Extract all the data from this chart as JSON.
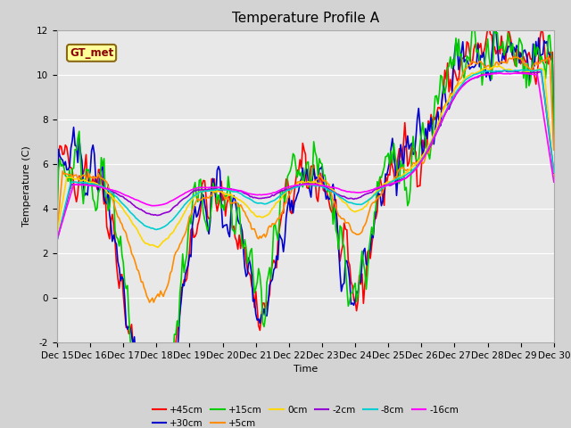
{
  "title": "Temperature Profile A",
  "xlabel": "Time",
  "ylabel": "Temperature (C)",
  "annotation": "GT_met",
  "annotation_color": "#8B0000",
  "annotation_bg": "#FFFF99",
  "annotation_border": "#8B6914",
  "ylim": [
    -2,
    12
  ],
  "yticks": [
    -2,
    0,
    2,
    4,
    6,
    8,
    10,
    12
  ],
  "fig_bg": "#d3d3d3",
  "plot_bg": "#e8e8e8",
  "series": [
    {
      "label": "+45cm",
      "color": "#FF0000",
      "linewidth": 1.2
    },
    {
      "label": "+30cm",
      "color": "#0000CC",
      "linewidth": 1.2
    },
    {
      "label": "+15cm",
      "color": "#00CC00",
      "linewidth": 1.2
    },
    {
      "label": "+5cm",
      "color": "#FF8C00",
      "linewidth": 1.2
    },
    {
      "label": "0cm",
      "color": "#FFD700",
      "linewidth": 1.2
    },
    {
      "label": "-2cm",
      "color": "#9400D3",
      "linewidth": 1.2
    },
    {
      "label": "-8cm",
      "color": "#00CED1",
      "linewidth": 1.2
    },
    {
      "label": "-16cm",
      "color": "#FF00FF",
      "linewidth": 1.2
    }
  ],
  "xtick_labels": [
    "Dec 15",
    "Dec 16",
    "Dec 17",
    "Dec 18",
    "Dec 19",
    "Dec 20",
    "Dec 21",
    "Dec 22",
    "Dec 23",
    "Dec 24",
    "Dec 25",
    "Dec 26",
    "Dec 27",
    "Dec 28",
    "Dec 29",
    "Dec 30"
  ],
  "title_fontsize": 11,
  "axis_fontsize": 8,
  "tick_fontsize": 7.5
}
